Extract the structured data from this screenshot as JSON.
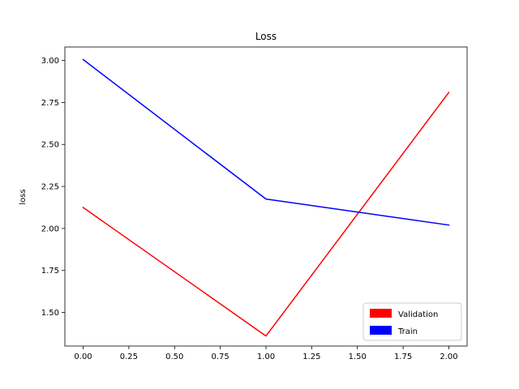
{
  "chart_data": {
    "type": "line",
    "title": "Loss",
    "xlabel": "",
    "ylabel": "loss",
    "x": [
      0,
      1,
      2
    ],
    "xlim": [
      -0.1,
      2.1
    ],
    "ylim": [
      1.3,
      3.08
    ],
    "xticks": [
      "0.00",
      "0.25",
      "0.50",
      "0.75",
      "1.00",
      "1.25",
      "1.50",
      "1.75",
      "2.00"
    ],
    "yticks": [
      "1.50",
      "1.75",
      "2.00",
      "2.25",
      "2.50",
      "2.75",
      "3.00"
    ],
    "series": [
      {
        "name": "Validation",
        "color": "#ff0000",
        "values": [
          2.125,
          1.36,
          2.81
        ]
      },
      {
        "name": "Train",
        "color": "#0000ff",
        "values": [
          3.005,
          2.175,
          2.02
        ]
      }
    ],
    "legend": {
      "position": "lower-right",
      "items": [
        "Validation",
        "Train"
      ]
    },
    "grid": false
  }
}
